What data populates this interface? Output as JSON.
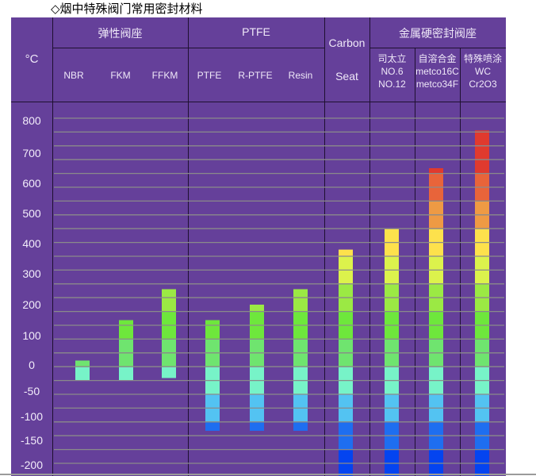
{
  "title": "◇烟中特殊阀门常用密封材料",
  "header": {
    "unit": "°C",
    "groups": [
      "弹性阀座",
      "PTFE",
      "Carbon",
      "金属硬密封阀座"
    ],
    "carbon_sub": "Seat",
    "metal_sub": [
      [
        "司太立",
        "NO.6",
        "NO.12"
      ],
      [
        "自溶合金",
        "metco16C",
        "metco34F"
      ],
      [
        "特殊喷涂",
        "WC",
        "Cr2O3"
      ]
    ]
  },
  "chart_data": {
    "type": "bar",
    "title": "烟中特殊阀门常用密封材料",
    "ylabel": "°C",
    "yticks": [
      800,
      700,
      600,
      500,
      400,
      300,
      200,
      100,
      0,
      -50,
      -100,
      -150,
      -200
    ],
    "ylim": [
      -220,
      820
    ],
    "grid": true,
    "categories": [
      "NBR",
      "FKM",
      "FFKM",
      "PTFE",
      "R-PTFE",
      "Resin",
      "Carbon Seat",
      "司太立 NO.6 NO.12",
      "自溶合金 metco16C metco34F",
      "特殊喷涂 WC Cr2O3"
    ],
    "category_labels": [
      "NBR",
      "FKM",
      "FFKM",
      "PTFE",
      "R-PTFE",
      "Resin"
    ],
    "ranges": [
      {
        "min": -30,
        "max": 15
      },
      {
        "min": -30,
        "max": 150
      },
      {
        "min": -25,
        "max": 250
      },
      {
        "min": -130,
        "max": 150
      },
      {
        "min": -130,
        "max": 200
      },
      {
        "min": -130,
        "max": 250
      },
      {
        "min": -240,
        "max": 380
      },
      {
        "min": -240,
        "max": 450
      },
      {
        "min": -240,
        "max": 650
      },
      {
        "min": -240,
        "max": 770
      }
    ],
    "band_colors": [
      "#e03a2e",
      "#e03a2e",
      "#e03a2e",
      "#e03a2e",
      "#e8643a",
      "#e8643a",
      "#ee9a44",
      "#ee9a44",
      "#fde14c",
      "#fde14c",
      "#dcf24c",
      "#dcf24c",
      "#9be944",
      "#9be944",
      "#6ee73c",
      "#6ee73c",
      "#6fe46f",
      "#6fe46f",
      "#77f3c8",
      "#77f3c8",
      "#53c3f2",
      "#53c3f2",
      "#1e6ef0",
      "#1e6ef0",
      "#0444f0",
      "#0444f0"
    ]
  },
  "colors": {
    "background": "#65409a",
    "grid": "#8a8a8a"
  }
}
